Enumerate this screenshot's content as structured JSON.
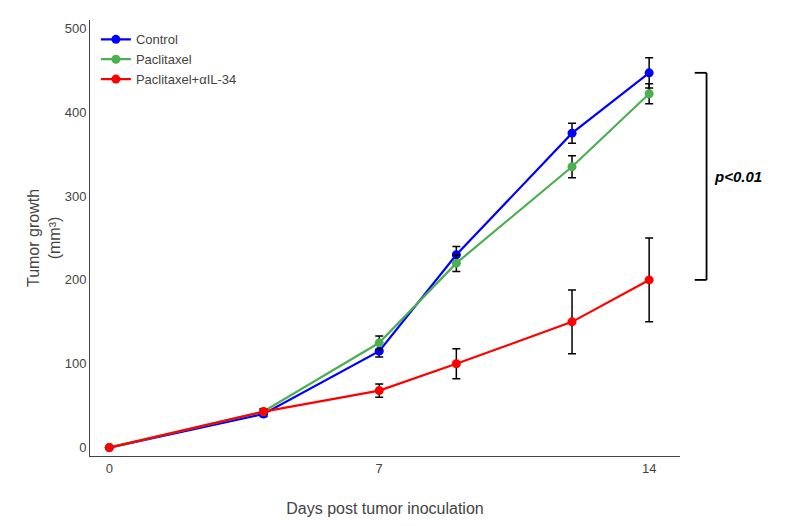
{
  "chart_data": {
    "type": "line",
    "xlabel": "Days post tumor inoculation",
    "ylabel": "Tumor growth\n(mm³)",
    "x": [
      0,
      4,
      7,
      9,
      12,
      14
    ],
    "series": [
      {
        "name": "Control",
        "color": "#0000FF",
        "values": [
          0,
          40,
          115,
          230,
          375,
          447
        ],
        "yerr": [
          0,
          3,
          7,
          10,
          12,
          18
        ]
      },
      {
        "name": "Paclitaxel",
        "color": "#4CAF50",
        "values": [
          0,
          43,
          125,
          220,
          335,
          422
        ],
        "yerr": [
          0,
          3,
          8,
          10,
          13,
          12
        ]
      },
      {
        "name": "Paclitaxel+αIL-34",
        "color": "#FF0000",
        "values": [
          0,
          43,
          68,
          100,
          150,
          200
        ],
        "yerr": [
          0,
          3,
          8,
          18,
          38,
          50
        ]
      }
    ],
    "xlim": [
      -0.5,
      14.8
    ],
    "ylim": [
      -10,
      510
    ],
    "xticks": [
      0,
      7,
      14
    ],
    "yticks": [
      0,
      100,
      200,
      300,
      400,
      500
    ],
    "grid": false,
    "legend": "upper left",
    "marker": "circle",
    "annotations": [
      {
        "text": "p<0.01",
        "y": [
          447,
          200
        ]
      }
    ]
  }
}
